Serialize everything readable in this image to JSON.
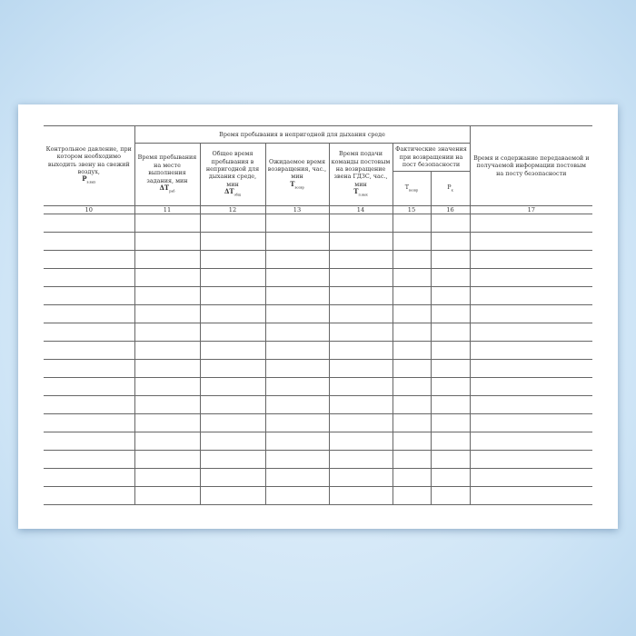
{
  "group_header": "Время пребывания в непригодной для дыхания среде",
  "subgroup_header": "Фактические значения при возвращении на пост безопасности",
  "columns": [
    {
      "label": "Контрольное давление, при котором необходимо выходить звену на свежий воздух,",
      "symbol": "P",
      "sub": "в.вых",
      "number": "10"
    },
    {
      "label": "Время пребывания на месте выполнения задания, мин",
      "symbol": "ΔT",
      "sub": "раб",
      "number": "11"
    },
    {
      "label": "Общее время пребывания в непригодной для дыхания среде, мин",
      "symbol": "ΔT",
      "sub": "общ",
      "number": "12"
    },
    {
      "label": "Ожидаемое время возвращения, час., мин",
      "symbol": "T",
      "sub": "возвр",
      "number": "13"
    },
    {
      "label": "Время подачи команды постовым на возвращение звена ГДЗС, час., мин",
      "symbol": "T",
      "sub": "п.вых",
      "number": "14"
    },
    {
      "label": "",
      "symbol": "T",
      "sub": "возвр",
      "number": "15"
    },
    {
      "label": "",
      "symbol": "P",
      "sub": "к",
      "number": "16"
    },
    {
      "label": "Время и содержание передаваемой и получаемой информации постовым на посту безопасности",
      "symbol": "",
      "sub": "",
      "number": "17"
    }
  ]
}
